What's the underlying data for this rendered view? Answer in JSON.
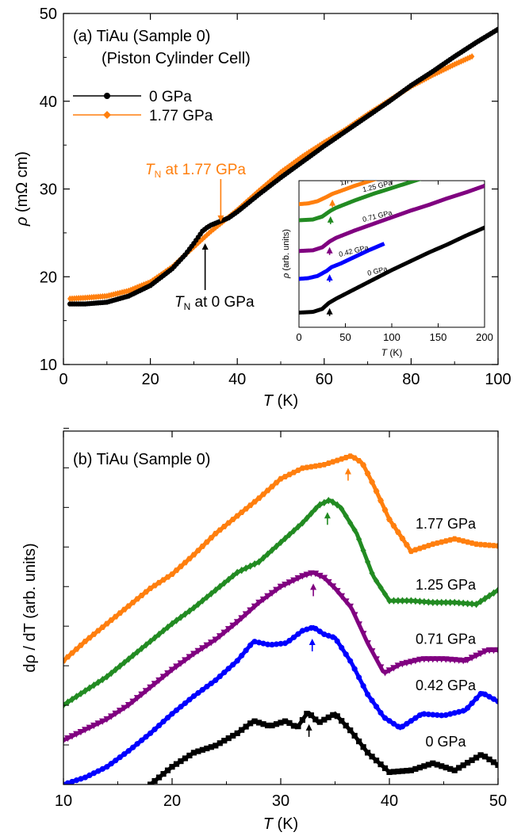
{
  "chart_data": [
    {
      "panel": "a",
      "type": "line",
      "title": "(a)  TiAu (Sample 0)",
      "subtitle": "(Piston Cylinder Cell)",
      "xlabel_italic": "T",
      "xlabel_unit": " (K)",
      "ylabel_italic": "ρ",
      "ylabel_unit": " (mΩ cm)",
      "xlim": [
        0,
        100
      ],
      "ylim": [
        10,
        50
      ],
      "xticks": [
        "0",
        "20",
        "40",
        "60",
        "80",
        "100"
      ],
      "yticks": [
        "10",
        "20",
        "30",
        "40",
        "50"
      ],
      "grid": false,
      "legend_position": "top-left",
      "series": [
        {
          "name": "0 GPa",
          "color": "#000000",
          "marker": "circle",
          "x": [
            1.5,
            5,
            10,
            15,
            20,
            25,
            28,
            30,
            32,
            33,
            34,
            36,
            38,
            40,
            45,
            50,
            55,
            60,
            65,
            70,
            75,
            80,
            85,
            90,
            95,
            100
          ],
          "y": [
            16.9,
            16.9,
            17.1,
            17.8,
            19.0,
            20.9,
            22.5,
            23.8,
            25.2,
            25.6,
            25.9,
            26.3,
            26.7,
            27.4,
            29.4,
            31.3,
            33.1,
            34.9,
            36.6,
            38.3,
            40.0,
            41.8,
            43.4,
            45.1,
            46.7,
            48.2
          ]
        },
        {
          "name": "1.77 GPa",
          "color": "#ff7f0e",
          "marker": "diamond",
          "x": [
            1.5,
            5,
            10,
            15,
            20,
            25,
            28,
            30,
            32,
            34,
            36,
            37,
            38,
            40,
            45,
            50,
            55,
            60,
            65,
            70,
            75,
            80,
            85,
            90,
            94
          ],
          "y": [
            17.5,
            17.6,
            17.8,
            18.4,
            19.4,
            21.1,
            22.5,
            23.4,
            24.3,
            25.2,
            26.0,
            26.4,
            26.8,
            27.6,
            29.8,
            31.9,
            33.7,
            35.3,
            36.8,
            38.5,
            40.1,
            41.7,
            43.0,
            44.2,
            45.1
          ]
        }
      ],
      "annotations": [
        {
          "italic": "T",
          "sub": "N",
          "text": " at 1.77 GPa",
          "x": 36.2,
          "color": "#ff7f0e"
        },
        {
          "italic": "T",
          "sub": "N",
          "text": " at 0 GPa",
          "x": 32.6,
          "color": "#000000"
        }
      ],
      "inset": {
        "type": "line",
        "xlabel_italic": "T",
        "xlabel_unit": " (K)",
        "ylabel_italic": "ρ",
        "ylabel_unit": " (arb. units)",
        "xlim": [
          0,
          200
        ],
        "ylim": [
          0,
          10
        ],
        "xticks": [
          "0",
          "50",
          "100",
          "150",
          "200"
        ],
        "series": [
          {
            "name": "0 GPa",
            "color": "#000000",
            "x": [
              0,
              15,
              25,
              32,
              40,
              60,
              80,
              100,
              120,
              140,
              160,
              180,
              200
            ],
            "y": [
              1.0,
              1.05,
              1.25,
              1.65,
              1.95,
              2.6,
              3.25,
              3.9,
              4.5,
              5.1,
              5.65,
              6.25,
              6.8
            ],
            "arrow_x": 33
          },
          {
            "name": "0.42 GPa",
            "color": "#0000ff",
            "x": [
              0,
              10,
              20,
              30,
              35,
              45,
              60,
              75,
              90
            ],
            "y": [
              3.3,
              3.35,
              3.5,
              3.85,
              4.1,
              4.35,
              4.8,
              5.25,
              5.65
            ],
            "arrow_x": 33
          },
          {
            "name": "0.71 GPa",
            "color": "#800080",
            "x": [
              0,
              15,
              25,
              33,
              40,
              60,
              80,
              100,
              120,
              140,
              160,
              180,
              200
            ],
            "y": [
              5.2,
              5.25,
              5.45,
              5.85,
              6.1,
              6.6,
              7.05,
              7.5,
              7.95,
              8.35,
              8.8,
              9.2,
              9.65
            ],
            "arrow_x": 33
          },
          {
            "name": "1.25 GPa",
            "color": "#228b22",
            "x": [
              0,
              15,
              25,
              34,
              40,
              60,
              80,
              100,
              120,
              140,
              147
            ],
            "y": [
              7.3,
              7.35,
              7.55,
              7.95,
              8.15,
              8.65,
              9.1,
              9.5,
              9.9,
              10.3,
              10.45
            ],
            "arrow_x": 34
          },
          {
            "name": "1.77 GPa",
            "color": "#ff7f0e",
            "x": [
              0,
              10,
              20,
              30,
              36,
              45,
              60,
              75,
              92
            ],
            "y": [
              8.4,
              8.45,
              8.6,
              8.9,
              9.1,
              9.3,
              9.65,
              9.95,
              10.3
            ],
            "arrow_x": 36
          }
        ]
      }
    },
    {
      "panel": "b",
      "type": "line",
      "title": "(b)  TiAu (Sample 0)",
      "xlabel_italic": "T",
      "xlabel_unit": " (K)",
      "ylabel": "dρ / dT (arb. units)",
      "xlim": [
        10,
        50
      ],
      "ylim": [
        0,
        10
      ],
      "xticks": [
        "10",
        "20",
        "30",
        "40",
        "50"
      ],
      "grid": false,
      "series": [
        {
          "name": "0 GPa",
          "color": "#000000",
          "marker": "square",
          "x": [
            18,
            20,
            22,
            24,
            26,
            27.5,
            29,
            30.5,
            31.5,
            32.5,
            33.5,
            35,
            36.5,
            38,
            40,
            42,
            44,
            46,
            48.5,
            50
          ],
          "y": [
            0,
            0.5,
            0.9,
            1.1,
            1.45,
            1.8,
            1.65,
            1.8,
            1.6,
            2.05,
            1.75,
            2.0,
            1.5,
            0.9,
            0.35,
            0.4,
            0.6,
            0.4,
            0.85,
            0.55
          ],
          "label": "0 GPa",
          "arrow_x": 32.6
        },
        {
          "name": "0.42 GPa",
          "color": "#0000ff",
          "marker": "circle",
          "x": [
            10,
            12,
            14,
            16,
            18,
            20,
            22,
            24,
            26,
            27.5,
            29,
            30.5,
            32,
            33,
            34,
            35,
            36.5,
            38,
            39.5,
            41,
            43,
            45,
            47,
            48.5,
            50
          ],
          "y": [
            0,
            0.2,
            0.5,
            0.95,
            1.45,
            2.0,
            2.5,
            2.95,
            3.5,
            4.05,
            3.95,
            4.0,
            4.35,
            4.45,
            4.25,
            4.15,
            3.45,
            2.55,
            1.9,
            1.6,
            2.0,
            1.95,
            2.1,
            2.6,
            2.35
          ],
          "label": "0.42 GPa",
          "arrow_x": 32.9
        },
        {
          "name": "0.71 GPa",
          "color": "#800080",
          "marker": "triangle-down",
          "x": [
            10,
            12,
            14,
            16,
            18,
            20,
            22,
            24,
            26,
            28,
            30,
            32,
            33,
            34,
            35,
            36.5,
            38,
            39.5,
            41,
            43,
            45,
            47,
            49,
            50
          ],
          "y": [
            1.25,
            1.55,
            1.85,
            2.25,
            2.75,
            3.25,
            3.7,
            4.1,
            4.6,
            5.15,
            5.6,
            5.9,
            6.0,
            5.85,
            5.55,
            5.0,
            4.0,
            3.15,
            3.4,
            3.55,
            3.55,
            3.5,
            3.8,
            3.8
          ],
          "label": "0.71 GPa",
          "arrow_x": 33.0
        },
        {
          "name": "1.25 GPa",
          "color": "#228b22",
          "marker": "diamond",
          "x": [
            10,
            12,
            14,
            16,
            18,
            20,
            22,
            24,
            26,
            28,
            30,
            32,
            33.5,
            34.5,
            35.5,
            37,
            38.5,
            40,
            42,
            44,
            46,
            48,
            50
          ],
          "y": [
            2.25,
            2.65,
            3.05,
            3.55,
            4.05,
            4.55,
            5.0,
            5.5,
            6.0,
            6.3,
            6.85,
            7.4,
            7.9,
            8.05,
            7.85,
            7.1,
            5.9,
            5.2,
            5.2,
            5.15,
            5.15,
            5.1,
            5.5
          ],
          "label": "1.25 GPa",
          "arrow_x": 34.3
        },
        {
          "name": "1.77 GPa",
          "color": "#ff7f0e",
          "marker": "hexagon",
          "x": [
            10,
            12,
            14,
            16,
            18,
            20,
            22,
            24,
            26,
            28,
            30,
            32,
            34,
            35.5,
            36.5,
            37.5,
            38.5,
            40,
            42,
            44,
            46,
            48,
            50
          ],
          "y": [
            3.5,
            4.05,
            4.55,
            5.05,
            5.55,
            5.95,
            6.5,
            7.1,
            7.6,
            8.1,
            8.65,
            8.95,
            9.05,
            9.2,
            9.3,
            9.1,
            8.5,
            7.5,
            6.6,
            6.8,
            6.95,
            6.8,
            6.75
          ],
          "label": "1.77 GPa",
          "arrow_x": 36.2
        }
      ]
    }
  ]
}
